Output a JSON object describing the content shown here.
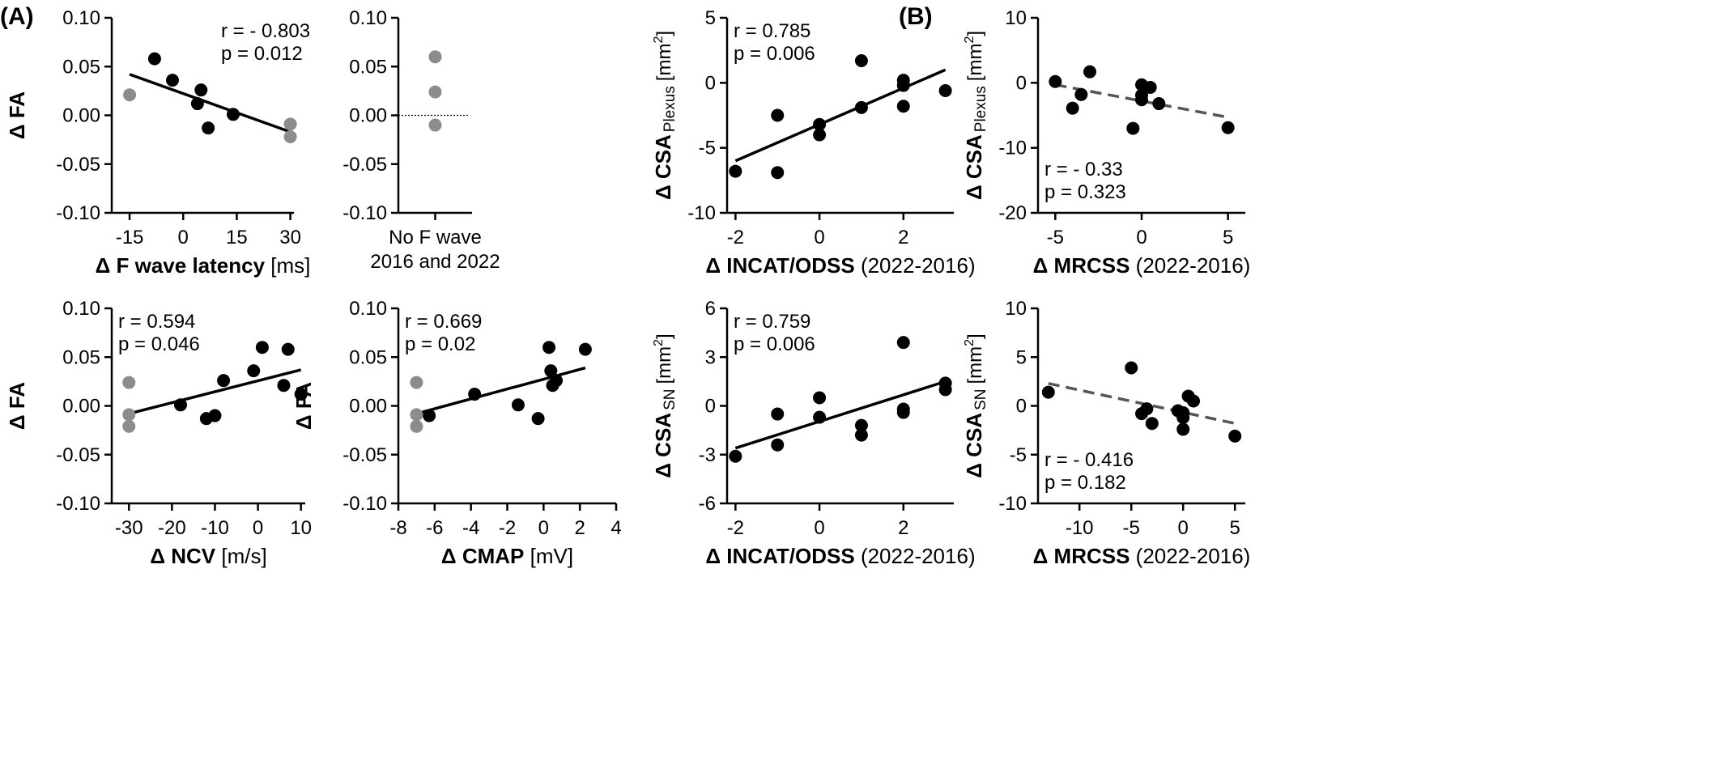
{
  "panel_labels": {
    "a": "(A)",
    "b": "(B)"
  },
  "chart_data": [
    {
      "id": "a1",
      "type": "scatter",
      "ylabel": "Δ FA",
      "xlabel": {
        "bold": "Δ F wave latency",
        "rest": " [ms]"
      },
      "xlim": [
        -20,
        31
      ],
      "ylim": [
        -0.1,
        0.1
      ],
      "xticks": [
        -15,
        0,
        15,
        30
      ],
      "xtick_labels": [
        "-15",
        "0",
        "15",
        "30"
      ],
      "yticks": [
        -0.1,
        -0.05,
        0.0,
        0.05,
        0.1
      ],
      "ytick_labels": [
        "-0.10",
        "-0.05",
        "0.00",
        "0.05",
        "0.10"
      ],
      "stats": [
        "r = - 0.803",
        "p = 0.012"
      ],
      "stats_position": "top-right",
      "series": [
        {
          "color": "#000000",
          "points": [
            [
              -8,
              0.058
            ],
            [
              -3,
              0.036
            ],
            [
              4,
              0.012
            ],
            [
              5,
              0.026
            ],
            [
              7,
              -0.013
            ],
            [
              14,
              0.001
            ]
          ]
        },
        {
          "color": "#8c8c8c",
          "points": [
            [
              -15,
              0.021
            ],
            [
              30,
              -0.009
            ],
            [
              30,
              -0.022
            ]
          ]
        }
      ],
      "fit": {
        "style": "solid",
        "color": "#000000",
        "x": [
          -15,
          30
        ],
        "y": [
          0.042,
          -0.017
        ]
      }
    },
    {
      "id": "a2",
      "type": "scatter",
      "ylabel": "",
      "xlabel": {
        "bold": "",
        "rest": ""
      },
      "category_label": [
        "No F wave",
        "2016 and 2022"
      ],
      "xlim": [
        -1,
        1
      ],
      "ylim": [
        -0.1,
        0.1
      ],
      "xticks": [
        0
      ],
      "xtick_labels": [
        ""
      ],
      "yticks": [
        -0.1,
        -0.05,
        0.0,
        0.05,
        0.1
      ],
      "ytick_labels": [
        "-0.10",
        "-0.05",
        "0.00",
        "0.05",
        "0.10"
      ],
      "stats": [],
      "stats_position": "top-left",
      "series": [
        {
          "color": "#8c8c8c",
          "points": [
            [
              0,
              0.06
            ],
            [
              0,
              0.024
            ],
            [
              0,
              -0.01
            ]
          ]
        }
      ],
      "reference_line": {
        "style": "dotted",
        "y": 0.0
      }
    },
    {
      "id": "a3",
      "type": "scatter",
      "ylabel": "Δ FA",
      "xlabel": {
        "bold": "Δ NCV",
        "rest": " [m/s]"
      },
      "xlim": [
        -34,
        11
      ],
      "ylim": [
        -0.1,
        0.1
      ],
      "xticks": [
        -30,
        -20,
        -10,
        0,
        10
      ],
      "xtick_labels": [
        "-30",
        "-20",
        "-10",
        "0",
        "10"
      ],
      "yticks": [
        -0.1,
        -0.05,
        0.0,
        0.05,
        0.1
      ],
      "ytick_labels": [
        "-0.10",
        "-0.05",
        "0.00",
        "0.05",
        "0.10"
      ],
      "stats": [
        "r = 0.594",
        "p = 0.046"
      ],
      "stats_position": "top-left",
      "series": [
        {
          "color": "#000000",
          "points": [
            [
              -18,
              0.001
            ],
            [
              -12,
              -0.013
            ],
            [
              -10,
              -0.01
            ],
            [
              -8,
              0.026
            ],
            [
              -1,
              0.036
            ],
            [
              1,
              0.06
            ],
            [
              6,
              0.021
            ],
            [
              7,
              0.058
            ],
            [
              10,
              0.012
            ]
          ]
        },
        {
          "color": "#8c8c8c",
          "points": [
            [
              -30,
              0.024
            ],
            [
              -30,
              -0.009
            ],
            [
              -30,
              -0.021
            ]
          ]
        }
      ],
      "fit": {
        "style": "solid",
        "color": "#000000",
        "x": [
          -30,
          10
        ],
        "y": [
          -0.008,
          0.037
        ]
      }
    },
    {
      "id": "a4",
      "type": "scatter",
      "ylabel": "Δ FA",
      "xlabel": {
        "bold": "Δ CMAP",
        "rest": " [mV]"
      },
      "xlim": [
        -8,
        4
      ],
      "ylim": [
        -0.1,
        0.1
      ],
      "xticks": [
        -8,
        -6,
        -4,
        -2,
        0,
        2,
        4
      ],
      "xtick_labels": [
        "-8",
        "-6",
        "-4",
        "-2",
        "0",
        "2",
        "4"
      ],
      "yticks": [
        -0.1,
        -0.05,
        0.0,
        0.05,
        0.1
      ],
      "ytick_labels": [
        "-0.10",
        "-0.05",
        "0.00",
        "0.05",
        "0.10"
      ],
      "stats": [
        "r = 0.669",
        "p = 0.02"
      ],
      "stats_position": "top-left",
      "series": [
        {
          "color": "#000000",
          "points": [
            [
              -6.3,
              -0.01
            ],
            [
              -3.8,
              0.012
            ],
            [
              -1.4,
              0.001
            ],
            [
              -0.3,
              -0.013
            ],
            [
              0.3,
              0.06
            ],
            [
              0.4,
              0.036
            ],
            [
              0.5,
              0.021
            ],
            [
              0.7,
              0.026
            ],
            [
              2.3,
              0.058
            ]
          ]
        },
        {
          "color": "#8c8c8c",
          "points": [
            [
              -7,
              0.024
            ],
            [
              -7,
              -0.009
            ],
            [
              -7,
              -0.021
            ]
          ]
        }
      ],
      "fit": {
        "style": "solid",
        "color": "#000000",
        "x": [
          -7,
          2.3
        ],
        "y": [
          -0.008,
          0.039
        ]
      }
    },
    {
      "id": "b1",
      "type": "scatter",
      "ylabel": {
        "main": "Δ CSA",
        "sub": "Plexus",
        "unit_pre": "[mm",
        "unit_sup": "2",
        "unit_post": "]"
      },
      "xlabel": {
        "bold": "Δ INCAT/ODSS",
        "rest": " (2022-2016)"
      },
      "xlim": [
        -2.2,
        3.2
      ],
      "ylim": [
        -10,
        5
      ],
      "xticks": [
        -2,
        0,
        2
      ],
      "xtick_labels": [
        "-2",
        "0",
        "2"
      ],
      "yticks": [
        -10,
        -5,
        0,
        5
      ],
      "ytick_labels": [
        "-10",
        "-5",
        "0",
        "5"
      ],
      "stats": [
        "r = 0.785",
        "p = 0.006"
      ],
      "stats_position": "top-left",
      "series": [
        {
          "color": "#000000",
          "points": [
            [
              -2,
              -6.8
            ],
            [
              -1,
              -2.5
            ],
            [
              -1,
              -6.9
            ],
            [
              0,
              -3.2
            ],
            [
              0,
              -4.0
            ],
            [
              1,
              1.7
            ],
            [
              1,
              -1.9
            ],
            [
              2,
              0.2
            ],
            [
              2,
              -0.2
            ],
            [
              2,
              -1.8
            ],
            [
              3,
              -0.6
            ]
          ]
        }
      ],
      "fit": {
        "style": "solid",
        "color": "#000000",
        "x": [
          -2,
          3
        ],
        "y": [
          -6.0,
          1.0
        ]
      }
    },
    {
      "id": "b2",
      "type": "scatter",
      "ylabel": {
        "main": "Δ CSA",
        "sub": "Plexus",
        "unit_pre": "[mm",
        "unit_sup": "2",
        "unit_post": "]"
      },
      "xlabel": {
        "bold": "Δ MRCSS",
        "rest": " (2022-2016)"
      },
      "xlim": [
        -6,
        6
      ],
      "ylim": [
        -20,
        10
      ],
      "xticks": [
        -5,
        0,
        5
      ],
      "xtick_labels": [
        "-5",
        "0",
        "5"
      ],
      "yticks": [
        -20,
        -10,
        0,
        10
      ],
      "ytick_labels": [
        "-20",
        "-10",
        "0",
        "10"
      ],
      "stats": [
        "r = - 0.33",
        "p = 0.323"
      ],
      "stats_position": "bottom-left",
      "series": [
        {
          "color": "#000000",
          "points": [
            [
              -5,
              0.2
            ],
            [
              -4,
              -3.9
            ],
            [
              -3.5,
              -1.8
            ],
            [
              -3,
              1.7
            ],
            [
              -0.5,
              -7.0
            ],
            [
              0,
              -0.3
            ],
            [
              0,
              -1.9
            ],
            [
              0,
              -2.6
            ],
            [
              0.5,
              -0.7
            ],
            [
              1,
              -3.2
            ],
            [
              5,
              -6.9
            ]
          ]
        }
      ],
      "fit": {
        "style": "dashed",
        "color": "#555555",
        "x": [
          -5,
          5
        ],
        "y": [
          -0.3,
          -5.3
        ]
      }
    },
    {
      "id": "b3",
      "type": "scatter",
      "ylabel": {
        "main": "Δ CSA",
        "sub": "SN",
        "unit_pre": "[mm",
        "unit_sup": "2",
        "unit_post": "]"
      },
      "xlabel": {
        "bold": "Δ INCAT/ODSS",
        "rest": " (2022-2016)"
      },
      "xlim": [
        -2.2,
        3.2
      ],
      "ylim": [
        -6,
        6
      ],
      "xticks": [
        -2,
        0,
        2
      ],
      "xtick_labels": [
        "-2",
        "0",
        "2"
      ],
      "yticks": [
        -6,
        -3,
        0,
        3,
        6
      ],
      "ytick_labels": [
        "-6",
        "-3",
        "0",
        "3",
        "6"
      ],
      "stats": [
        "r = 0.759",
        "p = 0.006"
      ],
      "stats_position": "top-left",
      "series": [
        {
          "color": "#000000",
          "points": [
            [
              -2,
              -3.1
            ],
            [
              -1,
              -0.5
            ],
            [
              -1,
              -2.4
            ],
            [
              0,
              0.5
            ],
            [
              0,
              -0.7
            ],
            [
              1,
              -1.2
            ],
            [
              1,
              -1.8
            ],
            [
              2,
              3.9
            ],
            [
              2,
              -0.2
            ],
            [
              2,
              -0.4
            ],
            [
              3,
              1.4
            ],
            [
              3,
              1.0
            ]
          ]
        }
      ],
      "fit": {
        "style": "solid",
        "color": "#000000",
        "x": [
          -2,
          3
        ],
        "y": [
          -2.6,
          1.5
        ]
      }
    },
    {
      "id": "b4",
      "type": "scatter",
      "ylabel": {
        "main": "Δ CSA",
        "sub": "SN",
        "unit_pre": "[mm",
        "unit_sup": "2",
        "unit_post": "]"
      },
      "xlabel": {
        "bold": "Δ MRCSS",
        "rest": " (2022-2016)"
      },
      "xlim": [
        -14,
        6
      ],
      "ylim": [
        -10,
        10
      ],
      "xticks": [
        -10,
        -5,
        0,
        5
      ],
      "xtick_labels": [
        "-10",
        "-5",
        "0",
        "5"
      ],
      "yticks": [
        -10,
        -5,
        0,
        5,
        10
      ],
      "ytick_labels": [
        "-10",
        "-5",
        "0",
        "5",
        "10"
      ],
      "stats": [
        "r = - 0.416",
        "p = 0.182"
      ],
      "stats_position": "bottom-left",
      "series": [
        {
          "color": "#000000",
          "points": [
            [
              -13,
              1.4
            ],
            [
              -5,
              3.9
            ],
            [
              -4,
              -0.8
            ],
            [
              -3.5,
              -0.3
            ],
            [
              -3,
              -1.8
            ],
            [
              -0.5,
              -0.5
            ],
            [
              0,
              -0.7
            ],
            [
              0,
              -1.2
            ],
            [
              0,
              -2.4
            ],
            [
              0.5,
              1.0
            ],
            [
              1,
              0.5
            ],
            [
              5,
              -3.1
            ]
          ]
        }
      ],
      "fit": {
        "style": "dashed",
        "color": "#555555",
        "x": [
          -13,
          5
        ],
        "y": [
          2.3,
          -1.8
        ]
      }
    }
  ]
}
